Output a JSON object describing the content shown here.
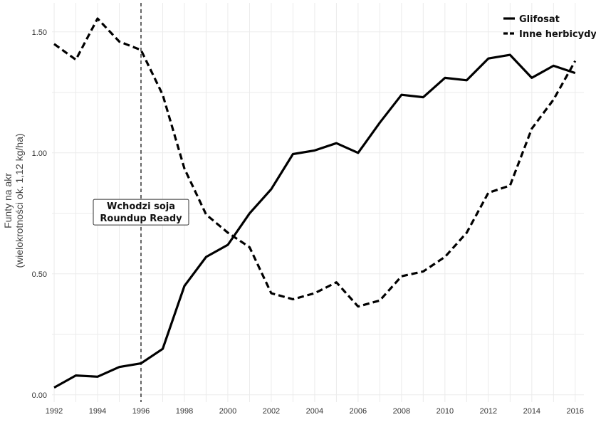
{
  "chart_data": {
    "type": "line",
    "title": "",
    "xlabel": "",
    "ylabel_line1": "Funty na akr",
    "ylabel_line2": "(wielokrotności ok. 1,12 kg/ha)",
    "x": [
      1992,
      1993,
      1994,
      1995,
      1996,
      1997,
      1998,
      1999,
      2000,
      2001,
      2002,
      2003,
      2004,
      2005,
      2006,
      2007,
      2008,
      2009,
      2010,
      2011,
      2012,
      2013,
      2014,
      2015,
      2016
    ],
    "xlim": [
      1991.9,
      2016.4
    ],
    "ylim": [
      -0.03,
      1.62
    ],
    "x_ticks": [
      1992,
      1994,
      1996,
      1998,
      2000,
      2002,
      2004,
      2006,
      2008,
      2010,
      2012,
      2014,
      2016
    ],
    "x_tick_labels": [
      "1992",
      "1994",
      "1996",
      "1998",
      "2000",
      "2002",
      "2004",
      "2006",
      "2008",
      "2010",
      "2012",
      "2014",
      "2016"
    ],
    "y_ticks": [
      0,
      0.5,
      1.0,
      1.5
    ],
    "y_tick_labels": [
      "0.00",
      "0.50",
      "1.00",
      "1.50"
    ],
    "grid": true,
    "legend_position": "top-right",
    "series": [
      {
        "name": "Glifosat",
        "style": "solid",
        "color": "#000000",
        "values": [
          0.03,
          0.08,
          0.075,
          0.115,
          0.13,
          0.19,
          0.45,
          0.57,
          0.62,
          0.75,
          0.85,
          0.995,
          1.01,
          1.04,
          1.0,
          1.125,
          1.24,
          1.23,
          1.31,
          1.3,
          1.39,
          1.405,
          1.31,
          1.36,
          1.33
        ]
      },
      {
        "name": "Inne herbicydy",
        "style": "dashed",
        "color": "#000000",
        "values": [
          1.45,
          1.385,
          1.555,
          1.46,
          1.425,
          1.24,
          0.935,
          0.745,
          0.67,
          0.61,
          0.42,
          0.395,
          0.42,
          0.465,
          0.365,
          0.39,
          0.49,
          0.51,
          0.57,
          0.67,
          0.835,
          0.865,
          1.1,
          1.22,
          1.38
        ]
      }
    ],
    "annotations": [
      {
        "type": "vline",
        "x": 1996,
        "style": "dashed"
      },
      {
        "type": "label",
        "x": 1996,
        "y": 0.755,
        "lines": [
          "Wchodzi soja",
          "Roundup Ready"
        ]
      }
    ]
  }
}
